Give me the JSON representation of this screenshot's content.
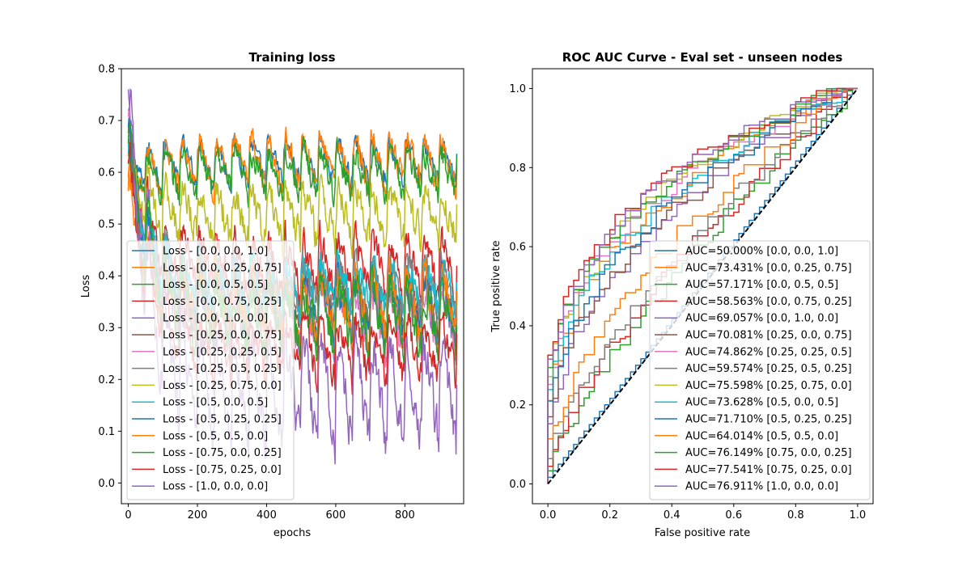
{
  "palette": [
    "#1f77b4",
    "#ff7f0e",
    "#2ca02c",
    "#d62728",
    "#9467bd",
    "#8c564b",
    "#e377c2",
    "#7f7f7f",
    "#bcbd22",
    "#17becf",
    "#1f77b4",
    "#ff7f0e",
    "#2ca02c",
    "#d62728",
    "#9467bd"
  ],
  "chart_data": [
    {
      "type": "line",
      "title": "Training loss",
      "xlabel": "epochs",
      "ylabel": "Loss",
      "xlim": [
        -20,
        970
      ],
      "ylim": [
        -0.04,
        0.8
      ],
      "xticks": [
        0,
        200,
        400,
        600,
        800
      ],
      "yticks": [
        0.0,
        0.1,
        0.2,
        0.3,
        0.4,
        0.5,
        0.6,
        0.7,
        0.8
      ],
      "legend_placement": "lower-left",
      "x_range_of_series": [
        0,
        950
      ],
      "period_epochs": 50,
      "series": [
        {
          "name": "Loss - [0.0, 0.0, 1.0]",
          "start": 0.6,
          "level": 0.62,
          "amp": 0.05,
          "noise": 0.03
        },
        {
          "name": "Loss - [0.0, 0.25, 0.75]",
          "start": 0.55,
          "level": 0.62,
          "amp": 0.06,
          "noise": 0.04
        },
        {
          "name": "Loss - [0.0, 0.5, 0.5]",
          "start": 0.58,
          "level": 0.6,
          "amp": 0.05,
          "noise": 0.04
        },
        {
          "name": "Loss - [0.0, 0.75, 0.25]",
          "start": 0.62,
          "level": 0.42,
          "amp": 0.07,
          "noise": 0.05
        },
        {
          "name": "Loss - [0.0, 1.0, 0.0]",
          "start": 0.7,
          "level": 0.33,
          "amp": 0.08,
          "noise": 0.06
        },
        {
          "name": "Loss - [0.25, 0.0, 0.75]",
          "start": 0.62,
          "level": 0.36,
          "amp": 0.07,
          "noise": 0.05
        },
        {
          "name": "Loss - [0.25, 0.25, 0.5]",
          "start": 0.64,
          "level": 0.32,
          "amp": 0.08,
          "noise": 0.06
        },
        {
          "name": "Loss - [0.25, 0.5, 0.25]",
          "start": 0.6,
          "level": 0.38,
          "amp": 0.07,
          "noise": 0.05
        },
        {
          "name": "Loss - [0.25, 0.75, 0.0]",
          "start": 0.58,
          "level": 0.52,
          "amp": 0.06,
          "noise": 0.05
        },
        {
          "name": "Loss - [0.5, 0.0, 0.5]",
          "start": 0.6,
          "level": 0.38,
          "amp": 0.06,
          "noise": 0.05
        },
        {
          "name": "Loss - [0.5, 0.25, 0.25]",
          "start": 0.62,
          "level": 0.34,
          "amp": 0.07,
          "noise": 0.05
        },
        {
          "name": "Loss - [0.5, 0.5, 0.0]",
          "start": 0.55,
          "level": 0.34,
          "amp": 0.08,
          "noise": 0.06
        },
        {
          "name": "Loss - [0.75, 0.0, 0.25]",
          "start": 0.64,
          "level": 0.32,
          "amp": 0.08,
          "noise": 0.06
        },
        {
          "name": "Loss - [0.75, 0.25, 0.0]",
          "start": 0.6,
          "level": 0.26,
          "amp": 0.07,
          "noise": 0.05
        },
        {
          "name": "Loss - [1.0, 0.0, 0.0]",
          "start": 0.68,
          "level": 0.18,
          "amp": 0.12,
          "noise": 0.07
        }
      ]
    },
    {
      "type": "line",
      "title": "ROC AUC Curve - Eval set - unseen nodes",
      "xlabel": "False positive rate",
      "ylabel": "True positive rate",
      "xlim": [
        -0.05,
        1.05
      ],
      "ylim": [
        -0.05,
        1.05
      ],
      "xticks": [
        0.0,
        0.2,
        0.4,
        0.6,
        0.8,
        1.0
      ],
      "yticks": [
        0.0,
        0.2,
        0.4,
        0.6,
        0.8,
        1.0
      ],
      "legend_placement": "lower-right",
      "diagonal": {
        "x": [
          0,
          1
        ],
        "y": [
          0,
          1
        ],
        "color": "#000000",
        "style": "dashed"
      },
      "series": [
        {
          "name": "AUC=50.000% [0.0, 0.0, 1.0]",
          "auc": 0.5
        },
        {
          "name": "AUC=73.431% [0.0, 0.25, 0.75]",
          "auc": 0.73431
        },
        {
          "name": "AUC=57.171% [0.0, 0.5, 0.5]",
          "auc": 0.57171
        },
        {
          "name": "AUC=58.563% [0.0, 0.75, 0.25]",
          "auc": 0.58563
        },
        {
          "name": "AUC=69.057% [0.0, 1.0, 0.0]",
          "auc": 0.69057
        },
        {
          "name": "AUC=70.081% [0.25, 0.0, 0.75]",
          "auc": 0.70081
        },
        {
          "name": "AUC=74.862% [0.25, 0.25, 0.5]",
          "auc": 0.74862
        },
        {
          "name": "AUC=59.574% [0.25, 0.5, 0.25]",
          "auc": 0.59574
        },
        {
          "name": "AUC=75.598% [0.25, 0.75, 0.0]",
          "auc": 0.75598
        },
        {
          "name": "AUC=73.628% [0.5, 0.0, 0.5]",
          "auc": 0.73628
        },
        {
          "name": "AUC=71.710% [0.5, 0.25, 0.25]",
          "auc": 0.7171
        },
        {
          "name": "AUC=64.014% [0.5, 0.5, 0.0]",
          "auc": 0.64014
        },
        {
          "name": "AUC=76.149% [0.75, 0.0, 0.25]",
          "auc": 0.76149
        },
        {
          "name": "AUC=77.541% [0.75, 0.25, 0.0]",
          "auc": 0.77541
        },
        {
          "name": "AUC=76.911% [1.0, 0.0, 0.0]",
          "auc": 0.76911
        }
      ]
    }
  ]
}
